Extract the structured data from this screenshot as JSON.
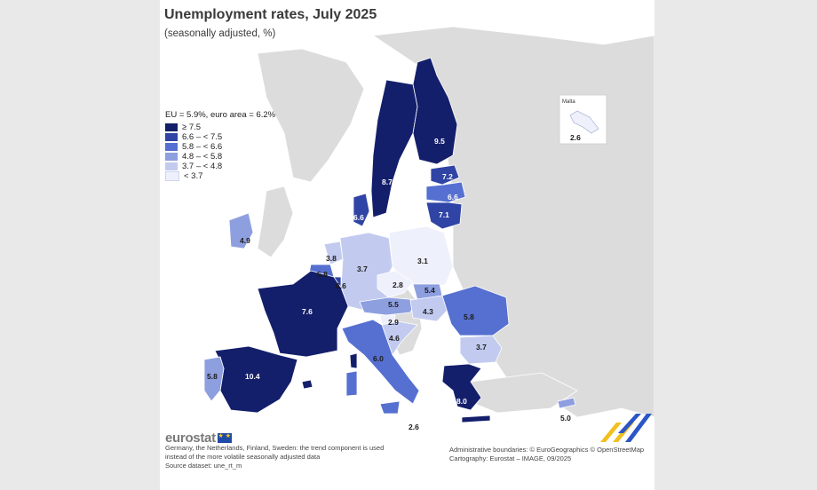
{
  "title": "Unemployment rates, July 2025",
  "subtitle": "(seasonally adjusted, %)",
  "legend": {
    "heading": "EU = 5.9%, euro area = 6.2%",
    "items": [
      {
        "label": "≥ 7.5",
        "color": "#141f6b"
      },
      {
        "label": "6.6 – < 7.5",
        "color": "#2f44a4"
      },
      {
        "label": "5.8 – < 6.6",
        "color": "#5670d1"
      },
      {
        "label": "4.8 – < 5.8",
        "color": "#8e9fe0"
      },
      {
        "label": "3.7 – < 4.8",
        "color": "#c2cbef"
      },
      {
        "label": "< 3.7",
        "color": "#eef0fb"
      }
    ]
  },
  "countries": [
    {
      "name": "Finland",
      "value": "9.5"
    },
    {
      "name": "Sweden",
      "value": "8.7"
    },
    {
      "name": "Estonia",
      "value": "7.2"
    },
    {
      "name": "Latvia",
      "value": "6.6"
    },
    {
      "name": "Lithuania",
      "value": "7.1"
    },
    {
      "name": "Denmark",
      "value": "6.6"
    },
    {
      "name": "Ireland",
      "value": "4.9"
    },
    {
      "name": "Netherlands",
      "value": "3.8"
    },
    {
      "name": "Belgium",
      "value": "5.8"
    },
    {
      "name": "Luxembourg",
      "value": "6.6"
    },
    {
      "name": "Germany",
      "value": "3.7"
    },
    {
      "name": "Poland",
      "value": "3.1"
    },
    {
      "name": "Czechia",
      "value": "2.8"
    },
    {
      "name": "Slovakia",
      "value": "5.4"
    },
    {
      "name": "Austria",
      "value": "5.5"
    },
    {
      "name": "Hungary",
      "value": "4.3"
    },
    {
      "name": "Slovenia",
      "value": "2.9"
    },
    {
      "name": "Croatia",
      "value": "4.6"
    },
    {
      "name": "Romania",
      "value": "5.8"
    },
    {
      "name": "Bulgaria",
      "value": "3.7"
    },
    {
      "name": "France",
      "value": "7.6"
    },
    {
      "name": "Spain",
      "value": "10.4"
    },
    {
      "name": "Portugal",
      "value": "5.8"
    },
    {
      "name": "Italy",
      "value": "6.0"
    },
    {
      "name": "Greece",
      "value": "8.0"
    },
    {
      "name": "Cyprus",
      "value": "5.0"
    },
    {
      "name": "Malta",
      "value": "2.6"
    },
    {
      "name": "Malta-italy-south",
      "value": "2.6"
    }
  ],
  "inset": {
    "label": "Malta",
    "value": "2.6"
  },
  "colors": {
    "land_non_eu": "#dcdcdc",
    "sea": "#ffffff",
    "border": "#ffffff"
  },
  "footer": {
    "logo": "eurostat",
    "note_line1": "Germany, the Netherlands, Finland, Sweden: the trend component is used",
    "note_line2": "instead of the more volatile seasonally adjusted data",
    "source": "Source dataset: une_rt_m",
    "credits_line1": "Administrative boundaries: © EuroGeographics © OpenStreetMap",
    "credits_line2": "Cartography: Eurostat – IMAGE, 09/2025"
  }
}
